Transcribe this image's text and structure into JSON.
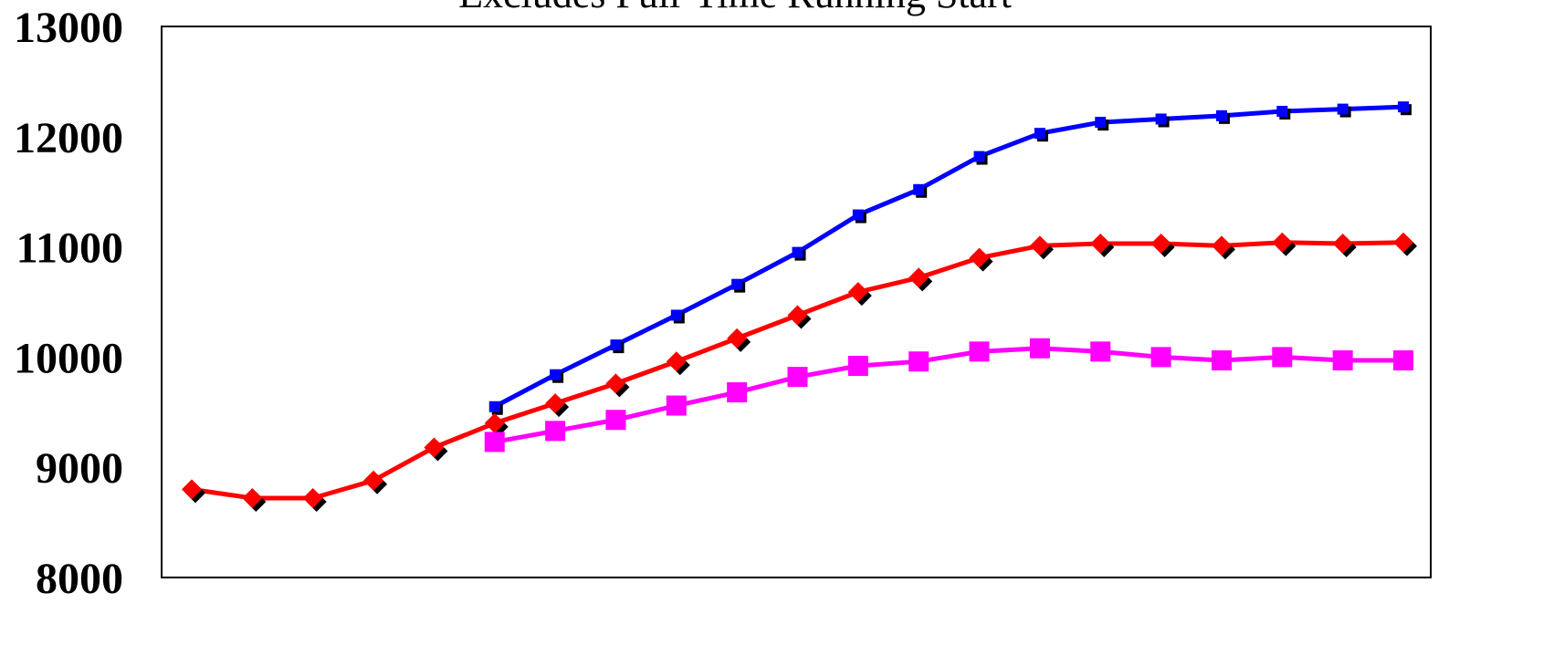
{
  "chart_data": {
    "type": "line",
    "title": "Excludes Full-Time Running Start",
    "xlabel": "",
    "ylabel": "",
    "ylim": [
      8000,
      13000
    ],
    "yticks": [
      "13000",
      "12000",
      "11000",
      "10000",
      "9000",
      "8000"
    ],
    "grid": false,
    "x": [
      1,
      2,
      3,
      4,
      5,
      6,
      7,
      8,
      9,
      10,
      11,
      12,
      13,
      14,
      15,
      16,
      17,
      18,
      19,
      20,
      21
    ],
    "series": [
      {
        "color": "#0000ff",
        "marker": "small-square",
        "values": [
          null,
          null,
          null,
          null,
          null,
          9550,
          9840,
          10110,
          10380,
          10660,
          10950,
          11290,
          11520,
          11820,
          12030,
          12130,
          12160,
          12190,
          12230,
          12250,
          12270
        ]
      },
      {
        "color": "#ff0000",
        "marker": "diamond",
        "values": [
          8800,
          8720,
          8720,
          8880,
          9180,
          9400,
          9580,
          9760,
          9960,
          10170,
          10380,
          10590,
          10720,
          10900,
          11010,
          11030,
          11030,
          11010,
          11040,
          11030,
          11040
        ]
      },
      {
        "color": "#ff00ff",
        "marker": "large-square",
        "values": [
          null,
          null,
          null,
          null,
          null,
          9230,
          9330,
          9430,
          9560,
          9680,
          9820,
          9920,
          9960,
          10050,
          10080,
          10050,
          10000,
          9970,
          10000,
          9970,
          9970
        ]
      }
    ]
  }
}
